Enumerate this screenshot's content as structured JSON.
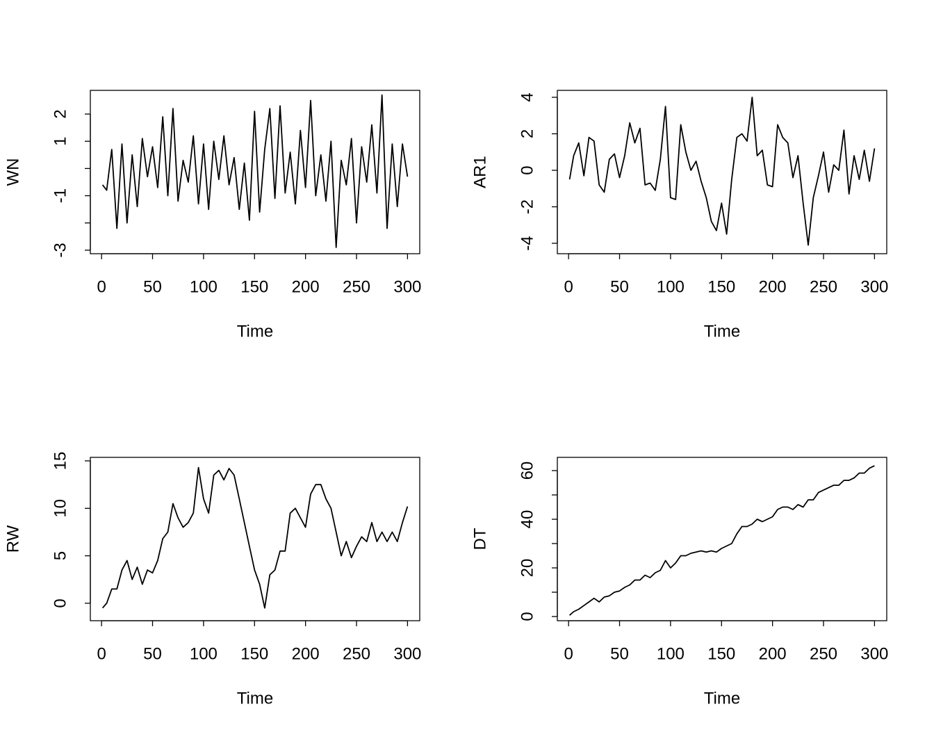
{
  "chart_data": [
    {
      "type": "line",
      "xlabel": "Time",
      "ylabel": "WN",
      "color": "#000000",
      "x": [
        1,
        5,
        10,
        15,
        20,
        25,
        30,
        35,
        40,
        45,
        50,
        55,
        60,
        65,
        70,
        75,
        80,
        85,
        90,
        95,
        100,
        105,
        110,
        115,
        120,
        125,
        130,
        135,
        140,
        145,
        150,
        155,
        160,
        165,
        170,
        175,
        180,
        185,
        190,
        195,
        200,
        205,
        210,
        215,
        220,
        225,
        230,
        235,
        240,
        245,
        250,
        255,
        260,
        265,
        270,
        275,
        280,
        285,
        290,
        295,
        300
      ],
      "values": [
        -0.6,
        -0.8,
        0.7,
        -2.2,
        0.9,
        -2.0,
        0.5,
        -1.4,
        1.1,
        -0.3,
        0.8,
        -0.7,
        1.9,
        -1.0,
        2.2,
        -1.2,
        0.3,
        -0.5,
        1.2,
        -1.3,
        0.9,
        -1.5,
        1.0,
        -0.4,
        1.2,
        -0.6,
        0.4,
        -1.5,
        0.2,
        -1.9,
        2.1,
        -1.6,
        0.7,
        2.2,
        -1.1,
        2.3,
        -0.9,
        0.6,
        -1.3,
        1.4,
        -0.7,
        2.5,
        -1.0,
        0.5,
        -1.2,
        1.0,
        -2.9,
        0.3,
        -0.6,
        1.1,
        -2.0,
        0.8,
        -0.5,
        1.6,
        -0.9,
        2.7,
        -2.2,
        0.9,
        -1.4,
        0.9,
        -0.3
      ],
      "xlim": [
        -11,
        312
      ],
      "ylim": [
        -3.13,
        2.87
      ],
      "xticks": [
        0,
        50,
        100,
        150,
        200,
        250,
        300
      ],
      "yticks": [
        -3,
        {
          "value": -2,
          "label": null
        },
        -1,
        {
          "value": 0,
          "label": null
        },
        1,
        2
      ]
    },
    {
      "type": "line",
      "xlabel": "Time",
      "ylabel": "AR1",
      "color": "#000000",
      "x": [
        1,
        5,
        10,
        15,
        20,
        25,
        30,
        35,
        40,
        45,
        50,
        55,
        60,
        65,
        70,
        75,
        80,
        85,
        90,
        95,
        100,
        105,
        110,
        115,
        120,
        125,
        130,
        135,
        140,
        145,
        150,
        155,
        160,
        165,
        170,
        175,
        180,
        185,
        190,
        195,
        200,
        205,
        210,
        215,
        220,
        225,
        230,
        235,
        240,
        245,
        250,
        255,
        260,
        265,
        270,
        275,
        280,
        285,
        290,
        295,
        300
      ],
      "values": [
        -0.5,
        0.8,
        1.5,
        -0.3,
        1.8,
        1.6,
        -0.8,
        -1.2,
        0.6,
        0.9,
        -0.4,
        0.8,
        2.6,
        1.5,
        2.3,
        -0.8,
        -0.7,
        -1.1,
        0.6,
        3.5,
        -1.5,
        -1.6,
        2.5,
        1.0,
        0.0,
        0.5,
        -0.6,
        -1.5,
        -2.8,
        -3.3,
        -1.8,
        -3.5,
        -0.5,
        1.8,
        2.0,
        1.6,
        4.0,
        0.8,
        1.1,
        -0.8,
        -0.9,
        2.5,
        1.8,
        1.5,
        -0.4,
        0.8,
        -1.8,
        -4.1,
        -1.5,
        -0.3,
        1.0,
        -1.2,
        0.3,
        0.0,
        2.2,
        -1.3,
        0.8,
        -0.5,
        1.1,
        -0.6,
        1.2
      ],
      "xlim": [
        -11,
        312
      ],
      "ylim": [
        -4.57,
        4.38
      ],
      "xticks": [
        0,
        50,
        100,
        150,
        200,
        250,
        300
      ],
      "yticks": [
        -4,
        -2,
        0,
        2,
        4
      ]
    },
    {
      "type": "line",
      "xlabel": "Time",
      "ylabel": "RW",
      "color": "#000000",
      "x": [
        1,
        5,
        10,
        15,
        20,
        25,
        30,
        35,
        40,
        45,
        50,
        55,
        60,
        65,
        70,
        75,
        80,
        85,
        90,
        95,
        100,
        105,
        110,
        115,
        120,
        125,
        130,
        135,
        140,
        145,
        150,
        155,
        160,
        165,
        170,
        175,
        180,
        185,
        190,
        195,
        200,
        205,
        210,
        215,
        220,
        225,
        230,
        235,
        240,
        245,
        250,
        255,
        260,
        265,
        270,
        275,
        280,
        285,
        290,
        295,
        300
      ],
      "values": [
        -0.5,
        0.0,
        1.5,
        1.5,
        3.5,
        4.5,
        2.5,
        3.8,
        2.0,
        3.5,
        3.2,
        4.5,
        6.8,
        7.5,
        10.5,
        9.0,
        8.0,
        8.5,
        9.5,
        14.3,
        11.0,
        9.5,
        13.5,
        14.0,
        13.0,
        14.2,
        13.5,
        11.0,
        8.5,
        6.0,
        3.5,
        2.0,
        -0.5,
        3.0,
        3.5,
        5.5,
        5.5,
        9.5,
        10.0,
        9.0,
        8.0,
        11.5,
        12.5,
        12.5,
        11.0,
        10.0,
        7.5,
        5.0,
        6.5,
        4.8,
        6.0,
        7.0,
        6.5,
        8.5,
        6.5,
        7.5,
        6.5,
        7.5,
        6.5,
        8.5,
        10.2
      ],
      "xlim": [
        -11,
        312
      ],
      "ylim": [
        -1.84,
        15.37
      ],
      "xticks": [
        0,
        50,
        100,
        150,
        200,
        250,
        300
      ],
      "yticks": [
        0,
        5,
        10,
        15
      ]
    },
    {
      "type": "line",
      "xlabel": "Time",
      "ylabel": "DT",
      "color": "#000000",
      "x": [
        1,
        5,
        10,
        15,
        20,
        25,
        30,
        35,
        40,
        45,
        50,
        55,
        60,
        65,
        70,
        75,
        80,
        85,
        90,
        95,
        100,
        105,
        110,
        115,
        120,
        125,
        130,
        135,
        140,
        145,
        150,
        155,
        160,
        165,
        170,
        175,
        180,
        185,
        190,
        195,
        200,
        205,
        210,
        215,
        220,
        225,
        230,
        235,
        240,
        245,
        250,
        255,
        260,
        265,
        270,
        275,
        280,
        285,
        290,
        295,
        300
      ],
      "values": [
        0.5,
        2,
        3,
        4.5,
        6,
        7.5,
        6,
        8,
        8.5,
        10,
        10.5,
        12,
        13,
        15,
        15,
        17,
        16,
        18,
        19,
        23,
        20,
        22,
        25,
        25,
        26,
        26.5,
        27,
        26.5,
        27,
        26.5,
        28,
        29,
        30,
        34,
        37,
        37,
        38,
        40,
        39,
        40,
        41,
        44,
        45,
        45,
        44,
        46,
        45,
        48,
        48,
        51,
        52,
        53,
        54,
        54,
        56,
        56,
        57,
        59,
        59,
        61,
        62
      ],
      "xlim": [
        -11,
        312
      ],
      "ylim": [
        -1.72,
        65.45
      ],
      "xticks": [
        0,
        50,
        100,
        150,
        200,
        250,
        300
      ],
      "yticks": [
        0,
        {
          "value": 10,
          "label": null
        },
        20,
        {
          "value": 30,
          "label": null
        },
        40,
        {
          "value": 50,
          "label": null
        },
        60
      ]
    }
  ]
}
